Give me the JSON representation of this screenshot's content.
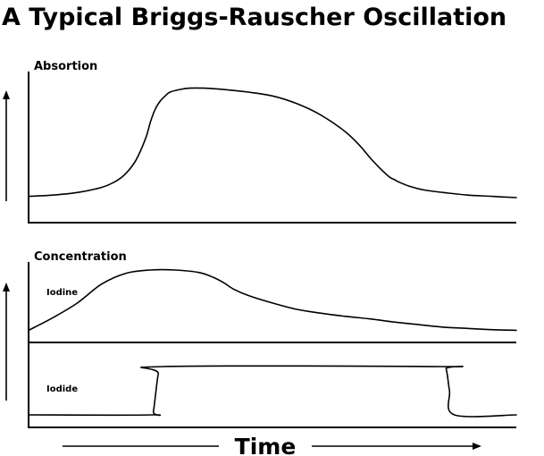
{
  "title": "A Typical Briggs-Rauscher Oscillation",
  "x_axis_label": "Time",
  "chart_data": [
    {
      "type": "line",
      "title": "Absortion",
      "xlabel": "Time",
      "ylabel": "",
      "grid": false,
      "series": [
        {
          "name": "",
          "x": [
            0,
            5,
            10,
            15,
            18,
            20,
            22,
            24,
            25,
            26,
            27,
            28,
            29,
            31,
            33,
            36,
            40,
            45,
            50,
            55,
            60,
            65,
            68,
            70,
            72,
            74,
            75,
            76,
            78,
            81,
            85,
            90,
            95,
            100
          ],
          "values": [
            0.1,
            0.11,
            0.13,
            0.17,
            0.22,
            0.28,
            0.38,
            0.55,
            0.68,
            0.78,
            0.84,
            0.88,
            0.91,
            0.93,
            0.94,
            0.94,
            0.93,
            0.91,
            0.88,
            0.82,
            0.73,
            0.6,
            0.49,
            0.4,
            0.32,
            0.25,
            0.23,
            0.21,
            0.18,
            0.15,
            0.13,
            0.11,
            0.1,
            0.09
          ]
        }
      ]
    },
    {
      "type": "line",
      "title": "Concentration",
      "xlabel": "Time",
      "ylabel": "",
      "grid": false,
      "series": [
        {
          "name": "Iodine",
          "x": [
            0,
            5,
            10,
            15,
            20,
            25,
            30,
            35,
            38,
            40,
            42,
            45,
            50,
            55,
            60,
            65,
            70,
            75,
            80,
            85,
            90,
            95,
            100
          ],
          "values": [
            0.05,
            0.25,
            0.48,
            0.78,
            0.95,
            1.0,
            1.0,
            0.96,
            0.88,
            0.8,
            0.7,
            0.6,
            0.48,
            0.38,
            0.32,
            0.27,
            0.23,
            0.18,
            0.14,
            0.1,
            0.08,
            0.06,
            0.05
          ]
        },
        {
          "name": "Iodide",
          "x": [
            0,
            25,
            25.6,
            26.6,
            27.5,
            84.5,
            85.6,
            86.3,
            87.3,
            100
          ],
          "values": [
            0.0,
            0.0,
            0.08,
            0.85,
            1.0,
            1.0,
            0.95,
            0.5,
            0.0,
            0.0
          ]
        }
      ]
    }
  ]
}
